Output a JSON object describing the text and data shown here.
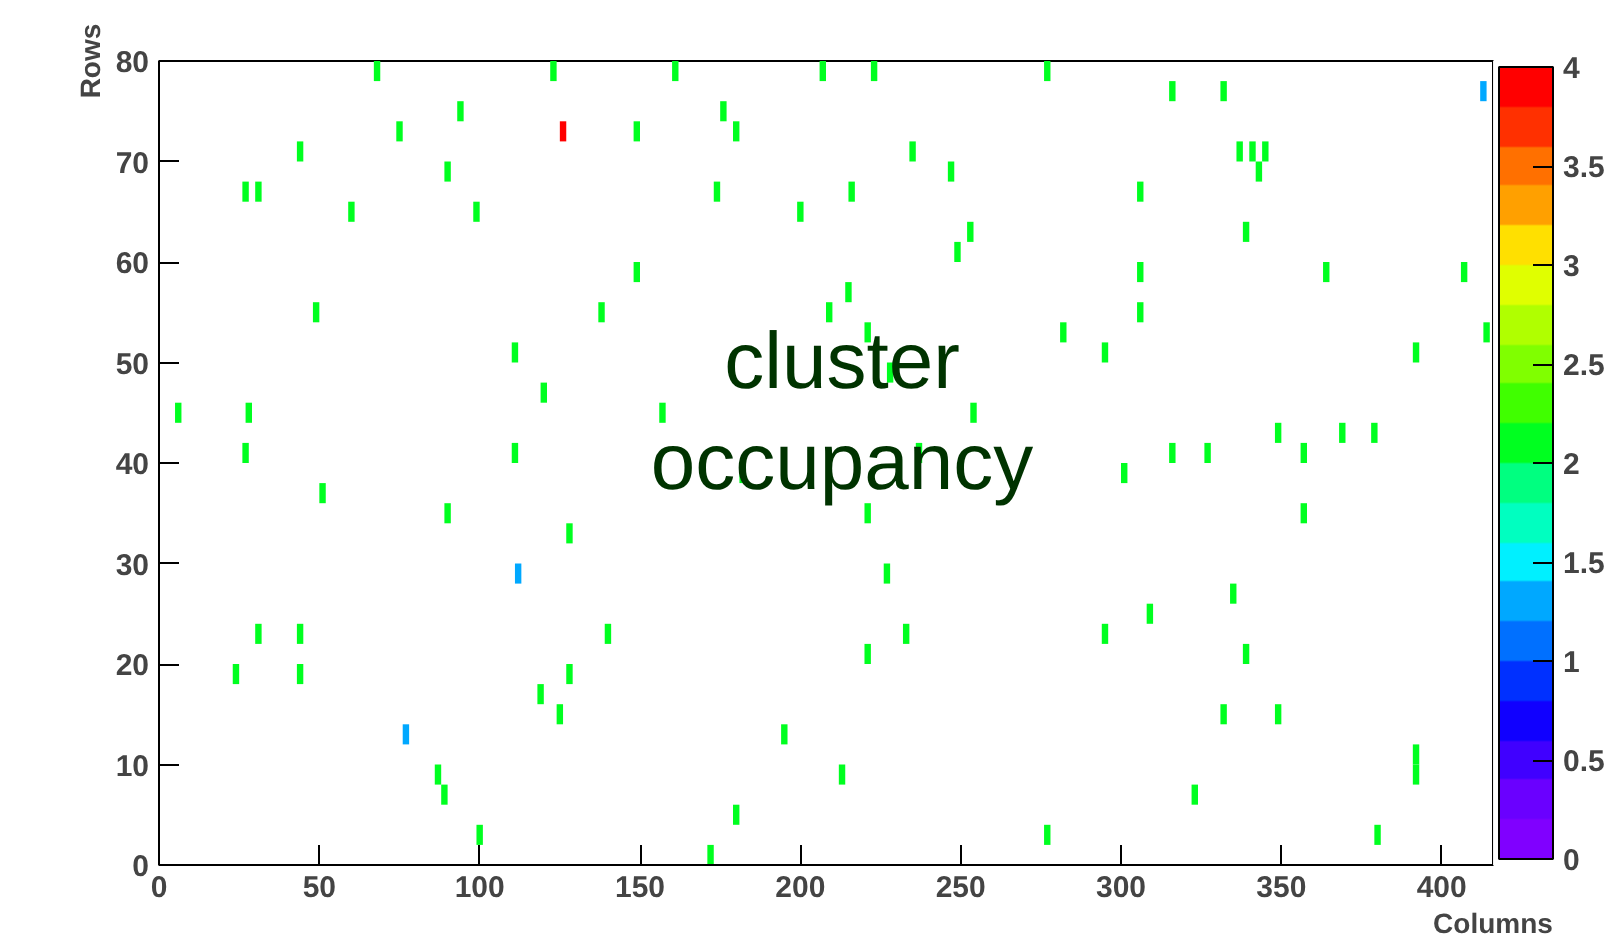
{
  "chart_data": {
    "type": "scatter",
    "xlabel": "Columns",
    "ylabel": "Rows",
    "annotations": [
      "cluster\noccupancy"
    ],
    "xlim": [
      0,
      416
    ],
    "ylim": [
      0,
      80
    ],
    "xticks": [
      0,
      50,
      100,
      150,
      200,
      250,
      300,
      350,
      400
    ],
    "yticks": [
      0,
      10,
      20,
      30,
      40,
      50,
      60,
      70,
      80
    ],
    "clim": [
      0,
      4
    ],
    "cticks": [
      0,
      0.5,
      1,
      1.5,
      2,
      2.5,
      3,
      3.5,
      4
    ],
    "grid": false,
    "marker": "square",
    "x": [
      68,
      123,
      161,
      207,
      223,
      277,
      316,
      332,
      413,
      94,
      176,
      126,
      75,
      149,
      180,
      235,
      337,
      341,
      345,
      44,
      90,
      247,
      343,
      27,
      31,
      174,
      216,
      306,
      60,
      99,
      200,
      253,
      339,
      249,
      149,
      306,
      364,
      407,
      215,
      49,
      138,
      209,
      306,
      221,
      282,
      414,
      111,
      295,
      392,
      228,
      120,
      6,
      28,
      157,
      254,
      349,
      369,
      379,
      27,
      111,
      316,
      327,
      357,
      237,
      182,
      301,
      51,
      90,
      357,
      221,
      128,
      112,
      227,
      335,
      309,
      31,
      44,
      140,
      233,
      295,
      221,
      339,
      24,
      44,
      128,
      119,
      125,
      332,
      349,
      77,
      195,
      392,
      392,
      87,
      213,
      89,
      323,
      180,
      100,
      277,
      380,
      172
    ],
    "values": [
      79,
      79,
      79,
      79,
      79,
      79,
      77,
      77,
      77,
      75,
      75,
      73,
      73,
      73,
      73,
      71,
      71,
      71,
      71,
      71,
      69,
      69,
      69,
      67,
      67,
      67,
      67,
      67,
      65,
      65,
      65,
      63,
      63,
      61,
      59,
      59,
      59,
      59,
      57,
      55,
      55,
      55,
      55,
      53,
      53,
      53,
      51,
      51,
      51,
      49,
      47,
      45,
      45,
      45,
      45,
      43,
      43,
      43,
      41,
      41,
      41,
      41,
      41,
      41,
      39,
      39,
      37,
      35,
      35,
      35,
      33,
      29,
      29,
      27,
      25,
      23,
      23,
      23,
      23,
      23,
      21,
      21,
      19,
      19,
      19,
      17,
      15,
      15,
      15,
      13,
      13,
      11,
      9,
      9,
      9,
      7,
      7,
      5,
      3,
      3,
      3,
      1
    ],
    "cvalues": [
      2,
      2,
      2,
      2,
      2,
      2,
      2,
      2,
      1.3,
      2,
      2,
      4,
      2,
      2,
      2,
      2,
      2,
      2,
      2,
      2,
      2,
      2,
      2,
      2,
      2,
      2,
      2,
      2,
      2,
      2,
      2,
      2,
      2,
      2,
      2,
      2,
      2,
      2,
      2,
      2,
      2,
      2,
      2,
      2,
      2,
      2,
      2,
      2,
      2,
      2,
      2,
      2,
      2,
      2,
      2,
      2,
      2,
      2,
      2,
      2,
      2,
      2,
      2,
      2,
      2,
      2,
      2,
      2,
      2,
      2,
      2,
      1.3,
      2,
      2,
      2,
      2,
      2,
      2,
      2,
      2,
      2,
      2,
      2,
      2,
      2,
      2,
      2,
      2,
      2,
      1.3,
      2,
      2,
      2,
      2,
      2,
      2,
      2,
      2,
      2,
      2,
      2,
      2
    ]
  }
}
